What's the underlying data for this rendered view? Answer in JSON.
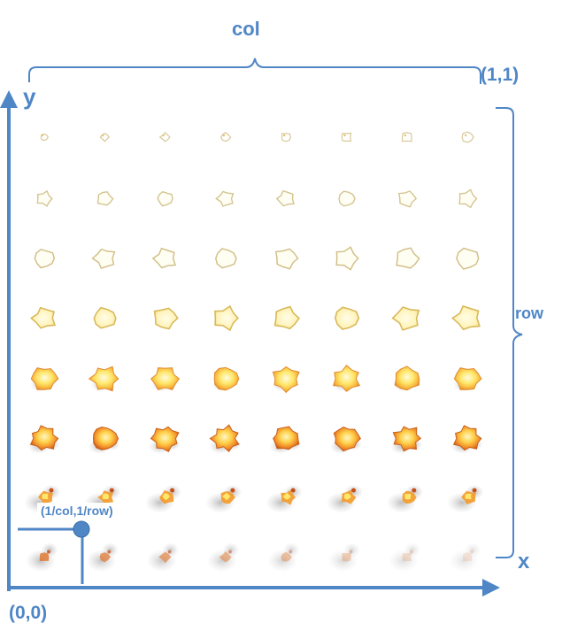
{
  "labels": {
    "col": "col",
    "row": "row",
    "corner_top_right": "(1,1)",
    "corner_bottom_left": "(0,0)",
    "y_axis": "y",
    "x_axis": "x",
    "uv_cell": "(1/col,1/row)"
  },
  "grid": {
    "cols": 8,
    "rows": 8,
    "frame_progress_top_to_bottom": [
      "sparks",
      "outline-small",
      "outline",
      "outline-fill",
      "fireball",
      "fireball-dense",
      "smoke-fire",
      "smoke"
    ]
  },
  "colors": {
    "accent": "#4f86c6",
    "outline": "#d8c89a",
    "fire_yellow": "#ffe76a",
    "fire_orange": "#f39a2a",
    "fire_red": "#c8501a",
    "smoke": "#b5b5b5"
  }
}
